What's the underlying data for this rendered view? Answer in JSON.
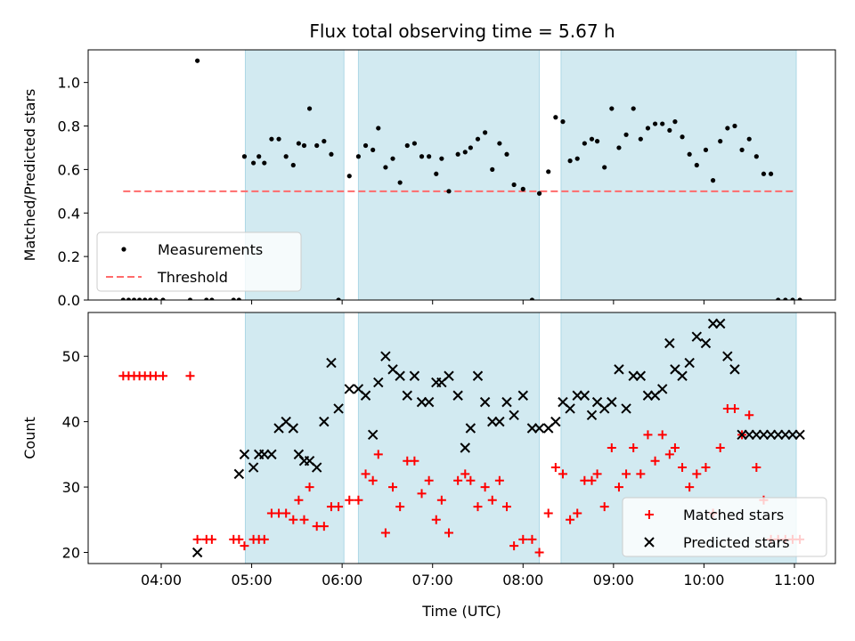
{
  "figure": {
    "title": "Flux total observing time = 5.67 h"
  },
  "colors": {
    "shade": "#add8e6",
    "threshold": "#ff6b6b",
    "matched": "#ff0000",
    "predicted": "#000000",
    "measure": "#000000"
  },
  "chart_data": [
    {
      "type": "scatter",
      "id": "top",
      "ylabel": "Matched/Predicted stars",
      "xlim": [
        3.33,
        10.8
      ],
      "ylim": [
        0,
        1.15
      ],
      "yticks": [
        0.0,
        0.2,
        0.4,
        0.6,
        0.8,
        1.0
      ],
      "ytick_labels": [
        "0.0",
        "0.2",
        "0.4",
        "0.6",
        "0.8",
        "1.0"
      ],
      "shaded_intervals": [
        [
          4.93,
          6.02
        ],
        [
          6.18,
          8.18
        ],
        [
          8.42,
          11.02
        ]
      ],
      "threshold": {
        "name": "Threshold",
        "value": 0.5,
        "x": [
          3.58,
          11.0
        ]
      },
      "legend": {
        "position": "lower-left",
        "entries": [
          "Measurements",
          "Threshold"
        ]
      },
      "series": [
        {
          "name": "Measurements",
          "x": [
            3.58,
            3.64,
            3.7,
            3.76,
            3.82,
            3.88,
            3.94,
            4.02,
            4.32,
            4.4,
            4.5,
            4.56,
            4.8,
            4.86,
            4.92,
            5.02,
            5.08,
            5.14,
            5.22,
            5.3,
            5.38,
            5.46,
            5.52,
            5.58,
            5.64,
            5.72,
            5.8,
            5.88,
            5.96,
            6.08,
            6.18,
            6.26,
            6.34,
            6.4,
            6.48,
            6.56,
            6.64,
            6.72,
            6.8,
            6.88,
            6.96,
            7.04,
            7.1,
            7.18,
            7.28,
            7.36,
            7.42,
            7.5,
            7.58,
            7.66,
            7.74,
            7.82,
            7.9,
            8.0,
            8.1,
            8.18,
            8.28,
            8.36,
            8.44,
            8.52,
            8.6,
            8.68,
            8.76,
            8.82,
            8.9,
            8.98,
            9.06,
            9.14,
            9.22,
            9.3,
            9.38,
            9.46,
            9.54,
            9.62,
            9.68,
            9.76,
            9.84,
            9.92,
            10.02,
            10.1,
            10.18,
            10.26,
            10.34,
            10.42,
            10.5,
            10.58,
            10.66,
            10.74,
            10.82,
            10.9,
            10.98,
            11.06
          ],
          "y": [
            0.0,
            0.0,
            0.0,
            0.0,
            0.0,
            0.0,
            0.0,
            0.0,
            0.0,
            1.1,
            0.0,
            0.0,
            0.0,
            0.0,
            0.66,
            0.63,
            0.66,
            0.63,
            0.74,
            0.74,
            0.66,
            0.62,
            0.72,
            0.71,
            0.88,
            0.71,
            0.73,
            0.67,
            0.0,
            0.57,
            0.66,
            0.71,
            0.69,
            0.79,
            0.61,
            0.65,
            0.54,
            0.71,
            0.72,
            0.66,
            0.66,
            0.58,
            0.65,
            0.5,
            0.67,
            0.68,
            0.7,
            0.74,
            0.77,
            0.6,
            0.72,
            0.67,
            0.53,
            0.51,
            0.0,
            0.49,
            0.59,
            0.84,
            0.82,
            0.64,
            0.65,
            0.72,
            0.74,
            0.73,
            0.61,
            0.88,
            0.7,
            0.76,
            0.88,
            0.74,
            0.79,
            0.81,
            0.81,
            0.78,
            0.82,
            0.75,
            0.67,
            0.62,
            0.69,
            0.55,
            0.73,
            0.79,
            0.8,
            0.69,
            0.74,
            0.66,
            0.58,
            0.58,
            0.0,
            0.0,
            0.0,
            0.0
          ]
        }
      ]
    },
    {
      "type": "scatter",
      "id": "bottom",
      "xlabel": "Time (UTC)",
      "ylabel": "Count",
      "xlim": [
        3.33,
        10.8
      ],
      "ylim": [
        18.3,
        56.7
      ],
      "yticks": [
        20,
        30,
        40,
        50
      ],
      "ytick_labels": [
        "20",
        "30",
        "40",
        "50"
      ],
      "xticks": [
        4,
        5,
        6,
        7,
        8,
        9,
        10,
        11
      ],
      "xtick_labels": [
        "04:00",
        "05:00",
        "06:00",
        "07:00",
        "08:00",
        "09:00",
        "10:00",
        "11:00"
      ],
      "shaded_intervals": [
        [
          4.93,
          6.02
        ],
        [
          6.18,
          8.18
        ],
        [
          8.42,
          11.02
        ]
      ],
      "legend": {
        "position": "lower-right",
        "entries": [
          "Matched stars",
          "Predicted stars"
        ]
      },
      "series": [
        {
          "name": "Matched stars",
          "x": [
            3.58,
            3.64,
            3.7,
            3.76,
            3.82,
            3.88,
            3.94,
            4.02,
            4.32,
            4.4,
            4.5,
            4.56,
            4.8,
            4.86,
            4.92,
            5.02,
            5.08,
            5.14,
            5.22,
            5.3,
            5.38,
            5.46,
            5.52,
            5.58,
            5.64,
            5.72,
            5.8,
            5.88,
            5.96,
            6.08,
            6.18,
            6.26,
            6.34,
            6.4,
            6.48,
            6.56,
            6.64,
            6.72,
            6.8,
            6.88,
            6.96,
            7.04,
            7.1,
            7.18,
            7.28,
            7.36,
            7.42,
            7.5,
            7.58,
            7.66,
            7.74,
            7.82,
            7.9,
            8.0,
            8.1,
            8.18,
            8.28,
            8.36,
            8.44,
            8.52,
            8.6,
            8.68,
            8.76,
            8.82,
            8.9,
            8.98,
            9.06,
            9.14,
            9.22,
            9.3,
            9.38,
            9.46,
            9.54,
            9.62,
            9.68,
            9.76,
            9.84,
            9.92,
            10.02,
            10.1,
            10.18,
            10.26,
            10.34,
            10.42,
            10.5,
            10.58,
            10.66,
            10.74,
            10.82,
            10.9,
            10.98,
            11.06
          ],
          "y": [
            47,
            47,
            47,
            47,
            47,
            47,
            47,
            47,
            47,
            22,
            22,
            22,
            22,
            22,
            21,
            22,
            22,
            22,
            26,
            26,
            26,
            25,
            28,
            25,
            30,
            24,
            24,
            27,
            27,
            28,
            28,
            32,
            31,
            35,
            23,
            30,
            27,
            34,
            34,
            29,
            31,
            25,
            28,
            23,
            31,
            32,
            31,
            27,
            30,
            28,
            31,
            27,
            21,
            22,
            22,
            20,
            26,
            33,
            32,
            25,
            26,
            31,
            31,
            32,
            27,
            36,
            30,
            32,
            36,
            32,
            38,
            34,
            38,
            35,
            36,
            33,
            30,
            32,
            33,
            26,
            36,
            42,
            42,
            38,
            41,
            33,
            28,
            22,
            22,
            22,
            22,
            22
          ]
        },
        {
          "name": "Predicted stars",
          "x": [
            4.4,
            4.86,
            4.92,
            5.02,
            5.08,
            5.14,
            5.22,
            5.3,
            5.38,
            5.46,
            5.52,
            5.58,
            5.64,
            5.72,
            5.8,
            5.88,
            5.96,
            6.08,
            6.18,
            6.26,
            6.34,
            6.4,
            6.48,
            6.56,
            6.64,
            6.72,
            6.8,
            6.88,
            6.96,
            7.04,
            7.1,
            7.18,
            7.28,
            7.36,
            7.42,
            7.5,
            7.58,
            7.66,
            7.74,
            7.82,
            7.9,
            8.0,
            8.1,
            8.18,
            8.28,
            8.36,
            8.44,
            8.52,
            8.6,
            8.68,
            8.76,
            8.82,
            8.9,
            8.98,
            9.06,
            9.14,
            9.22,
            9.3,
            9.38,
            9.46,
            9.54,
            9.62,
            9.68,
            9.76,
            9.84,
            9.92,
            10.02,
            10.1,
            10.18,
            10.26,
            10.34,
            10.42,
            10.5,
            10.58,
            10.66,
            10.74,
            10.82,
            10.9,
            10.98,
            11.06
          ],
          "y": [
            20,
            32,
            35,
            33,
            35,
            35,
            35,
            39,
            40,
            39,
            35,
            34,
            34,
            33,
            40,
            49,
            42,
            45,
            45,
            44,
            38,
            46,
            50,
            48,
            47,
            44,
            47,
            43,
            43,
            46,
            46,
            47,
            44,
            36,
            39,
            47,
            43,
            40,
            40,
            43,
            41,
            44,
            39,
            39,
            39,
            40,
            43,
            42,
            44,
            44,
            41,
            43,
            42,
            43,
            48,
            42,
            47,
            47,
            44,
            44,
            45,
            52,
            48,
            47,
            49,
            53,
            52,
            55,
            55,
            50,
            48,
            38,
            38,
            38,
            38,
            38,
            38,
            38,
            38,
            38
          ]
        }
      ]
    }
  ]
}
